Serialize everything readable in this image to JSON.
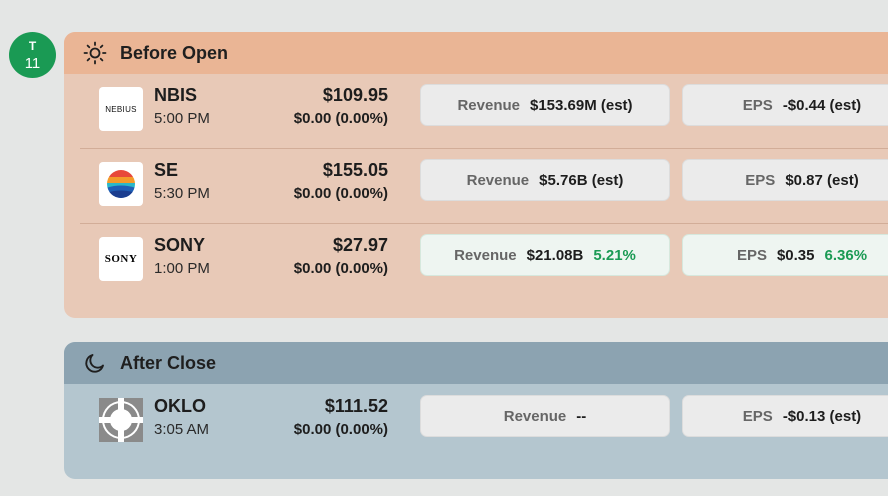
{
  "date": {
    "dow": "T",
    "day": "11"
  },
  "sections": [
    {
      "title": "Before Open",
      "icon": "sun-icon",
      "rows": [
        {
          "ticker": "NBIS",
          "time": "5:00 PM",
          "price": "$109.95",
          "change": "$0.00 (0.00%)",
          "logo_text": "NEBIUS",
          "revenue_label": "Revenue",
          "revenue": "$153.69M (est)",
          "revenue_pct": "",
          "eps_label": "EPS",
          "eps": "-$0.44 (est)",
          "eps_pct": ""
        },
        {
          "ticker": "SE",
          "time": "5:30 PM",
          "price": "$155.05",
          "change": "$0.00 (0.00%)",
          "logo_text": "",
          "revenue_label": "Revenue",
          "revenue": "$5.76B (est)",
          "revenue_pct": "",
          "eps_label": "EPS",
          "eps": "$0.87 (est)",
          "eps_pct": ""
        },
        {
          "ticker": "SONY",
          "time": "1:00 PM",
          "price": "$27.97",
          "change": "$0.00 (0.00%)",
          "logo_text": "SONY",
          "revenue_label": "Revenue",
          "revenue": "$21.08B",
          "revenue_pct": "5.21%",
          "eps_label": "EPS",
          "eps": "$0.35",
          "eps_pct": "6.36%"
        }
      ]
    },
    {
      "title": "After Close",
      "icon": "moon-icon",
      "rows": [
        {
          "ticker": "OKLO",
          "time": "3:05 AM",
          "price": "$111.52",
          "change": "$0.00 (0.00%)",
          "logo_text": "",
          "revenue_label": "Revenue",
          "revenue": "--",
          "revenue_pct": "",
          "eps_label": "EPS",
          "eps": "-$0.13 (est)",
          "eps_pct": ""
        }
      ]
    }
  ],
  "colors": {
    "positive": "#1a9a54",
    "before_header": "#eab595",
    "after_header": "#8ca3b1"
  }
}
